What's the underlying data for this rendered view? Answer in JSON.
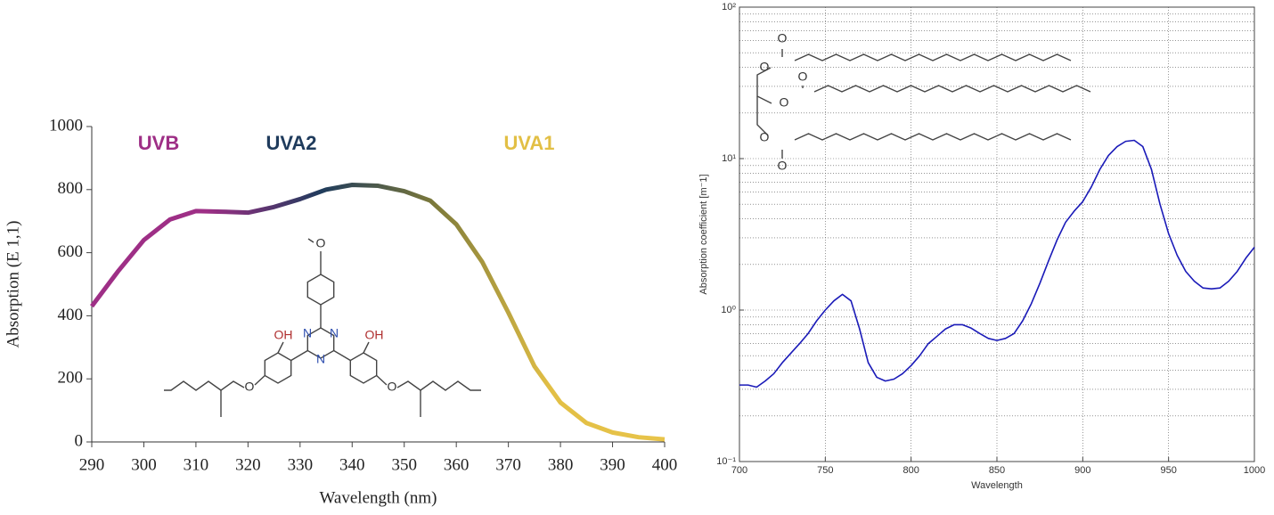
{
  "chart_data": [
    {
      "type": "line",
      "x_label": "Wavelength (nm)",
      "y_label": "Absorption (E 1,1)",
      "x": [
        290,
        295,
        300,
        305,
        310,
        315,
        320,
        325,
        330,
        335,
        340,
        345,
        350,
        355,
        360,
        365,
        370,
        375,
        380,
        385,
        390,
        395,
        400
      ],
      "values": [
        430,
        540,
        640,
        705,
        732,
        730,
        727,
        745,
        770,
        800,
        815,
        812,
        795,
        765,
        690,
        570,
        410,
        240,
        125,
        60,
        30,
        15,
        8
      ],
      "gradient": [
        "#9e2f86",
        "#9e2f86",
        "#1f3b5c",
        "#7d7a3a",
        "#e2bf45",
        "#e8c44a"
      ],
      "xlim": [
        290,
        400
      ],
      "xticks": [
        290,
        300,
        310,
        320,
        330,
        340,
        350,
        360,
        370,
        380,
        390,
        400
      ],
      "ylim": [
        0,
        1000
      ],
      "yticks": [
        0,
        200,
        400,
        600,
        800,
        1000
      ],
      "grid": false,
      "annotations": [
        {
          "text": "UVB",
          "color": "#9e2f86"
        },
        {
          "text": "UVA2",
          "color": "#1f3b5c"
        },
        {
          "text": "UVA1",
          "color": "#e2bf45"
        }
      ],
      "structure_labels": [
        "O",
        "OH",
        "N",
        "N",
        "N",
        "OH",
        "O",
        "O"
      ]
    },
    {
      "type": "line",
      "x_label": "Wavelength",
      "y_label": "Absorption coefficient [m⁻1]",
      "color": "#1a1ab8",
      "log_y": true,
      "x": [
        700,
        705,
        710,
        715,
        720,
        725,
        730,
        735,
        740,
        745,
        750,
        755,
        760,
        765,
        770,
        775,
        780,
        785,
        790,
        795,
        800,
        805,
        810,
        815,
        820,
        825,
        830,
        835,
        840,
        845,
        850,
        855,
        860,
        865,
        870,
        875,
        880,
        885,
        890,
        895,
        900,
        905,
        910,
        915,
        920,
        925,
        930,
        935,
        940,
        945,
        950,
        955,
        960,
        965,
        970,
        975,
        980,
        985,
        990,
        995,
        1000
      ],
      "values": [
        0.32,
        0.32,
        0.31,
        0.34,
        0.38,
        0.45,
        0.52,
        0.6,
        0.7,
        0.85,
        1.0,
        1.15,
        1.27,
        1.15,
        0.75,
        0.45,
        0.36,
        0.34,
        0.35,
        0.38,
        0.43,
        0.5,
        0.6,
        0.67,
        0.75,
        0.8,
        0.8,
        0.76,
        0.7,
        0.65,
        0.63,
        0.65,
        0.7,
        0.85,
        1.1,
        1.5,
        2.1,
        2.9,
        3.8,
        4.5,
        5.2,
        6.5,
        8.5,
        10.5,
        12,
        13,
        13.2,
        12,
        8.5,
        5,
        3.2,
        2.3,
        1.8,
        1.55,
        1.4,
        1.38,
        1.4,
        1.55,
        1.8,
        2.2,
        2.6
      ],
      "xlim": [
        700,
        1000
      ],
      "xticks": [
        700,
        750,
        800,
        850,
        900,
        950,
        1000
      ],
      "ylim": [
        0.1,
        100
      ],
      "yticks": [
        {
          "value": 0.1,
          "label": "10⁻¹"
        },
        {
          "value": 1,
          "label": "10⁰"
        },
        {
          "value": 10,
          "label": "10¹"
        },
        {
          "value": 100,
          "label": "10²"
        }
      ],
      "yminorticks": [
        0.2,
        0.3,
        0.4,
        0.5,
        0.6,
        0.7,
        0.8,
        0.9,
        2,
        3,
        4,
        5,
        6,
        7,
        8,
        9,
        20,
        30,
        40,
        50,
        60,
        70,
        80,
        90
      ],
      "grid": true,
      "structure_labels": [
        "O",
        "O",
        "O",
        "O",
        "O",
        "O"
      ]
    }
  ]
}
